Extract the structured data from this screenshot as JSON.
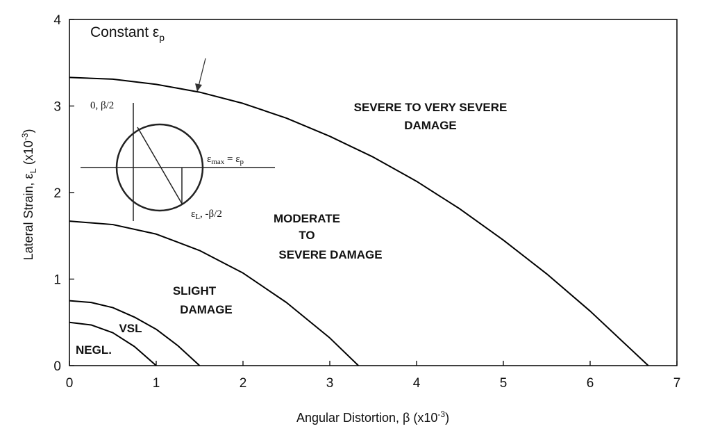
{
  "chart_data": {
    "type": "line",
    "xlabel": [
      "Angular Distortion, β (x10",
      "-3",
      ")"
    ],
    "ylabel": [
      "Lateral Strain, ε",
      "L",
      " (x10",
      "-3",
      ")"
    ],
    "xlim": [
      0,
      7
    ],
    "ylim": [
      0,
      4
    ],
    "xticks": [
      0,
      1,
      2,
      3,
      4,
      5,
      6,
      7
    ],
    "yticks": [
      0,
      1,
      2,
      3,
      4
    ],
    "series": [
      {
        "color": "#000000",
        "x": [
          0,
          0.25,
          0.5,
          0.75,
          1
        ],
        "values": [
          0.5,
          0.47,
          0.38,
          0.22,
          0
        ]
      },
      {
        "color": "#000000",
        "x": [
          0,
          0.25,
          0.5,
          0.75,
          1,
          1.25,
          1.5
        ],
        "values": [
          0.75,
          0.73,
          0.67,
          0.56,
          0.42,
          0.23,
          0
        ]
      },
      {
        "color": "#000000",
        "x": [
          0,
          0.5,
          1,
          1.5,
          2,
          2.5,
          3,
          3.33
        ],
        "values": [
          1.67,
          1.63,
          1.52,
          1.33,
          1.07,
          0.73,
          0.32,
          0
        ]
      },
      {
        "color": "#000000",
        "x": [
          0,
          0.5,
          1,
          1.5,
          2,
          2.5,
          3,
          3.5,
          4,
          4.5,
          5,
          5.5,
          6,
          6.5,
          6.67
        ],
        "values": [
          3.33,
          3.31,
          3.25,
          3.16,
          3.03,
          2.86,
          2.65,
          2.41,
          2.13,
          1.81,
          1.45,
          1.06,
          0.63,
          0.16,
          0
        ]
      }
    ],
    "annotations": [
      "SEVERE TO VERY SEVERE",
      "DAMAGE",
      "MODERATE",
      "TO",
      "SEVERE DAMAGE",
      "SLIGHT",
      "DAMAGE",
      "VSL",
      "NEGL."
    ],
    "curve_label": [
      "Constant ε",
      "p"
    ],
    "inset_labels": [
      [
        "0, β/2"
      ],
      [
        "ε",
        "max",
        " = ε",
        "p"
      ],
      [
        "ε",
        "L",
        ", -β/2"
      ]
    ]
  }
}
